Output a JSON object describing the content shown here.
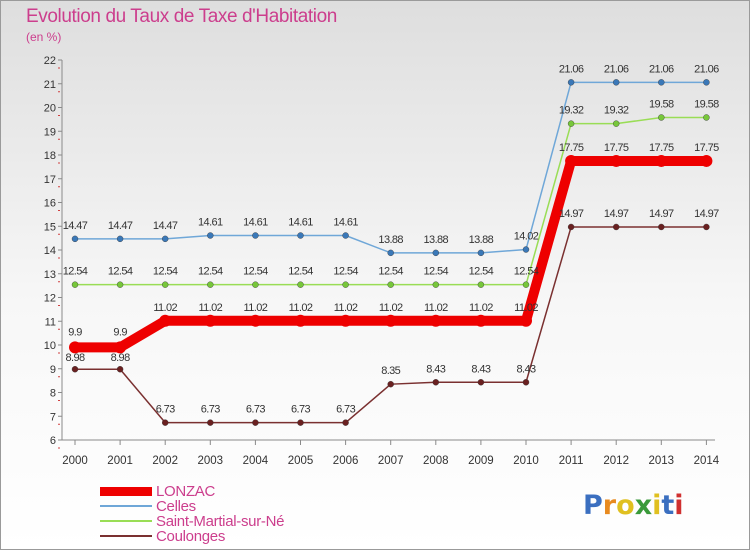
{
  "chart_data": {
    "type": "line",
    "title": "Evolution du Taux de Taxe d'Habitation",
    "unit_label": "(en %)",
    "x": [
      "2000",
      "2001",
      "2002",
      "2003",
      "2004",
      "2005",
      "2006",
      "2007",
      "2008",
      "2009",
      "2010",
      "2011",
      "2012",
      "2013",
      "2014"
    ],
    "ylim": [
      6,
      22
    ],
    "yticks": [
      "6",
      "7",
      "8",
      "9",
      "10",
      "11",
      "12",
      "13",
      "14",
      "15",
      "16",
      "17",
      "18",
      "19",
      "20",
      "21",
      "22"
    ],
    "grid": false,
    "series": [
      {
        "name": "LONZAC",
        "color": "#ee0000",
        "marker_color": "#ee0000",
        "values": [
          9.9,
          9.9,
          11.02,
          11.02,
          11.02,
          11.02,
          11.02,
          11.02,
          11.02,
          11.02,
          11.02,
          17.75,
          17.75,
          17.75,
          17.75
        ],
        "labels": [
          "9.9",
          "9.9",
          "11.02",
          "11.02",
          "11.02",
          "11.02",
          "11.02",
          "11.02",
          "11.02",
          "11.02",
          "11.02",
          "17.75",
          "17.75",
          "17.75",
          "17.75"
        ]
      },
      {
        "name": "Celles",
        "color": "#6fa7d8",
        "marker_color": "#3a78b8",
        "values": [
          14.47,
          14.47,
          14.47,
          14.61,
          14.61,
          14.61,
          14.61,
          13.88,
          13.88,
          13.88,
          14.02,
          21.06,
          21.06,
          21.06,
          21.06
        ],
        "labels": [
          "14.47",
          "14.47",
          "14.47",
          "14.61",
          "14.61",
          "14.61",
          "14.61",
          "13.88",
          "13.88",
          "13.88",
          "14.02",
          "21.06",
          "21.06",
          "21.06",
          "21.06"
        ]
      },
      {
        "name": "Saint-Martial-sur-Né",
        "color": "#99dd55",
        "marker_color": "#77c73a",
        "values": [
          12.54,
          12.54,
          12.54,
          12.54,
          12.54,
          12.54,
          12.54,
          12.54,
          12.54,
          12.54,
          12.54,
          19.32,
          19.32,
          19.58,
          19.58
        ],
        "labels": [
          "12.54",
          "12.54",
          "12.54",
          "12.54",
          "12.54",
          "12.54",
          "12.54",
          "12.54",
          "12.54",
          "12.54",
          "12.54",
          "19.32",
          "19.32",
          "19.58",
          "19.58"
        ]
      },
      {
        "name": "Coulonges",
        "color": "#7a3030",
        "marker_color": "#6a2020",
        "values": [
          8.98,
          8.98,
          6.73,
          6.73,
          6.73,
          6.73,
          6.73,
          8.35,
          8.43,
          8.43,
          8.43,
          14.97,
          14.97,
          14.97,
          14.97
        ],
        "labels": [
          "8.98",
          "8.98",
          "6.73",
          "6.73",
          "6.73",
          "6.73",
          "6.73",
          "8.35",
          "8.43",
          "8.43",
          "8.43",
          "14.97",
          "14.97",
          "14.97",
          "14.97"
        ]
      }
    ],
    "legend_position": "bottom-left"
  },
  "logo": {
    "letters": [
      "P",
      "r",
      "o",
      "x",
      "i",
      "t",
      "i"
    ],
    "colors": [
      "#3b6fc0",
      "#e88a1f",
      "#e0c020",
      "#3a9a3a",
      "#e0c020",
      "#3b6fc0",
      "#d03030"
    ]
  }
}
